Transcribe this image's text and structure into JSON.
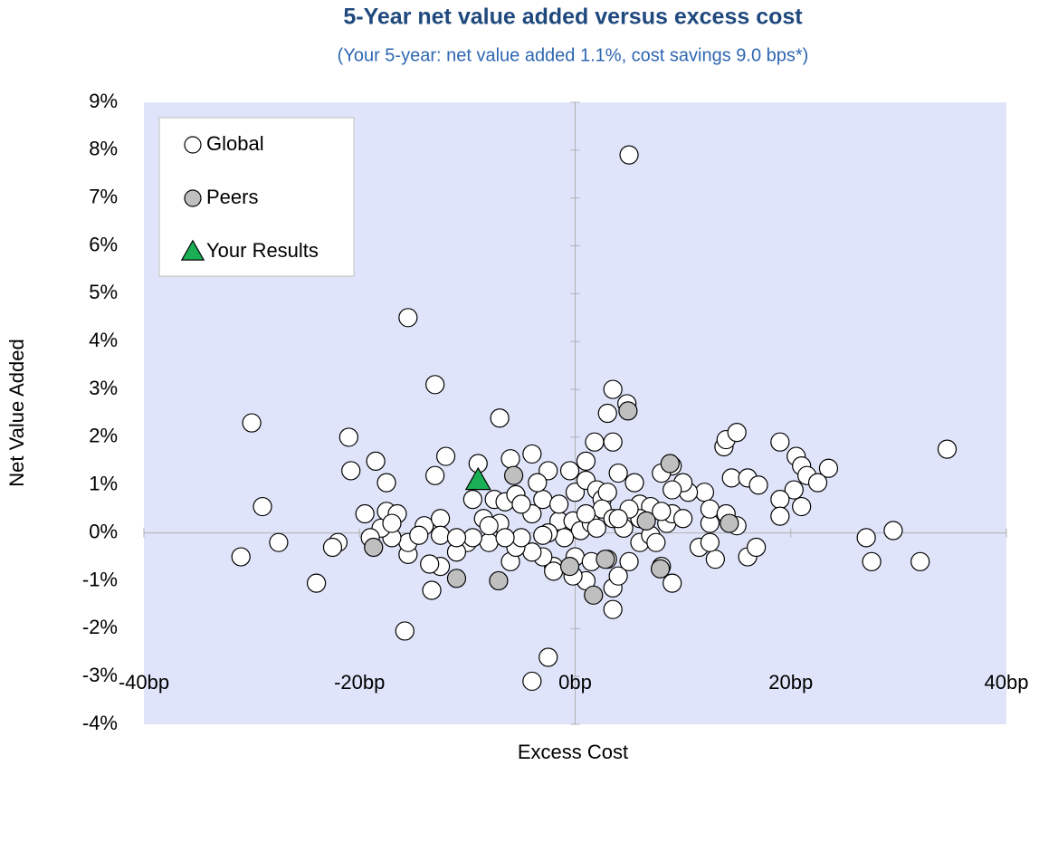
{
  "chart_data": {
    "type": "scatter",
    "title": "5-Year net value added versus excess cost",
    "subtitle": "(Your 5-year: net value added 1.1%, cost savings 9.0 bps*)",
    "x_label": "Excess Cost",
    "y_label": "Net Value Added",
    "xlim": [
      -40,
      40
    ],
    "ylim": [
      -4,
      9
    ],
    "xticks": [
      {
        "value": -40,
        "label": "-40bp"
      },
      {
        "value": -20,
        "label": "-20bp"
      },
      {
        "value": 0,
        "label": "0bp"
      },
      {
        "value": 20,
        "label": "20bp"
      },
      {
        "value": 40,
        "label": "40bp"
      }
    ],
    "yticks": [
      {
        "value": -4,
        "label": "-4%"
      },
      {
        "value": -3,
        "label": "-3%"
      },
      {
        "value": -2,
        "label": "-2%"
      },
      {
        "value": -1,
        "label": "-1%"
      },
      {
        "value": 0,
        "label": "0%"
      },
      {
        "value": 1,
        "label": "1%"
      },
      {
        "value": 2,
        "label": "2%"
      },
      {
        "value": 3,
        "label": "3%"
      },
      {
        "value": 4,
        "label": "4%"
      },
      {
        "value": 5,
        "label": "5%"
      },
      {
        "value": 6,
        "label": "6%"
      },
      {
        "value": 7,
        "label": "7%"
      },
      {
        "value": 8,
        "label": "8%"
      },
      {
        "value": 9,
        "label": "9%"
      }
    ],
    "legend": "upper left",
    "background": "#dfe4fa",
    "series": [
      {
        "name": "Global",
        "color": "#ffffff",
        "marker": "circle",
        "x": [
          5,
          -15.5,
          -13,
          -30,
          -21,
          -29,
          -31,
          -27.5,
          -24,
          -22,
          -15.8,
          -13.3,
          -4,
          -2.5,
          -7,
          3.5,
          4.8,
          3,
          3.5,
          1.8,
          -4,
          -6,
          -9,
          -12,
          -13,
          -18.5,
          -20.8,
          -17.5,
          13.8,
          14,
          15,
          19,
          20.5,
          21,
          21.5,
          23.5,
          22.5,
          20.3,
          19,
          19,
          21,
          14.5,
          16,
          17,
          12,
          10.5,
          9,
          8,
          10,
          9,
          34.5,
          29.5,
          27,
          27.5,
          32,
          16,
          16.8,
          13,
          11.5,
          12.5,
          12.5,
          12.5,
          15,
          14,
          9,
          3.5,
          3.5,
          4,
          3,
          5,
          6,
          7,
          8,
          1,
          -0.2,
          -2,
          -2,
          -3,
          -4,
          -6,
          -5.5,
          -8,
          -10,
          -11,
          -12.5,
          -13.5,
          -15.5,
          -15.5,
          -17,
          -18,
          -19,
          -19.5,
          -17.5,
          -16.5,
          -14,
          -12.5,
          -12.5,
          -9.5,
          -7.5,
          -6.5,
          -5.5,
          -3,
          -2.5,
          -3.5,
          -0.5,
          0,
          1,
          1,
          2,
          2.5,
          3,
          4,
          5.5,
          6,
          7,
          -1.5,
          -0.2,
          0.5,
          1.5,
          2.5,
          3.5,
          4.5,
          -1,
          -2.5,
          -4,
          -5,
          -7,
          -8.5,
          -8,
          -9.5,
          -11,
          -14.5,
          -17,
          -22.5,
          0,
          1.5,
          2,
          6,
          8.5,
          9,
          10,
          5,
          4,
          1,
          -1.5,
          -5,
          -6.5,
          -3,
          7.5,
          8
        ],
        "values": [
          7.9,
          4.5,
          3.1,
          2.3,
          2.0,
          0.55,
          -0.5,
          -0.2,
          -1.05,
          -0.2,
          -2.05,
          -1.2,
          -3.1,
          -2.6,
          2.4,
          3.0,
          2.7,
          2.5,
          1.9,
          1.9,
          1.65,
          1.55,
          1.45,
          1.6,
          1.2,
          1.5,
          1.3,
          1.05,
          1.8,
          1.95,
          2.1,
          1.9,
          1.6,
          1.4,
          1.2,
          1.35,
          1.05,
          0.9,
          0.7,
          0.35,
          0.55,
          1.15,
          1.15,
          1.0,
          0.85,
          0.85,
          1.4,
          1.25,
          1.05,
          0.9,
          1.75,
          0.05,
          -0.1,
          -0.6,
          -0.6,
          -0.5,
          -0.3,
          -0.55,
          -0.3,
          -0.2,
          0.2,
          0.5,
          0.15,
          0.4,
          -1.05,
          -1.6,
          -1.15,
          -0.9,
          -0.55,
          -0.6,
          -0.2,
          -0.05,
          -0.7,
          -1.0,
          -0.9,
          -0.7,
          -0.8,
          -0.5,
          -0.4,
          -0.6,
          -0.3,
          -0.2,
          -0.2,
          -0.4,
          -0.7,
          -0.65,
          -0.45,
          -0.2,
          -0.1,
          0.1,
          -0.1,
          0.4,
          0.45,
          0.4,
          0.15,
          0.3,
          -0.05,
          0.7,
          0.7,
          0.65,
          0.8,
          0.7,
          1.3,
          1.05,
          1.3,
          0.85,
          1.1,
          1.5,
          0.9,
          0.7,
          0.85,
          1.25,
          1.05,
          0.6,
          0.55,
          0.25,
          0.25,
          0.05,
          0.2,
          0.5,
          0.3,
          0.1,
          -0.1,
          0,
          0.4,
          0.6,
          0.2,
          0.3,
          0.15,
          -0.1,
          -0.1,
          -0.05,
          0.2,
          -0.3,
          -0.5,
          -0.6,
          0.1,
          0.3,
          0.2,
          0.4,
          0.3,
          0.5,
          0.3,
          0.4,
          0.6,
          -0.1,
          -0.1,
          -0.05,
          -0.2,
          0.45
        ]
      },
      {
        "name": "Peers",
        "color": "#bfbfbf",
        "marker": "circle",
        "x": [
          -5.7,
          4.9,
          8.8,
          6.6,
          14.3,
          -18.7,
          -11,
          -7.1,
          -0.5,
          2.8,
          1.7,
          7.9
        ],
        "values": [
          1.2,
          2.55,
          1.45,
          0.25,
          0.2,
          -0.3,
          -0.95,
          -1.0,
          -0.7,
          -0.55,
          -1.3,
          -0.75
        ]
      },
      {
        "name": "Your Results",
        "color": "#1aaf54",
        "marker": "triangle",
        "x": [
          -9
        ],
        "values": [
          1.1
        ]
      }
    ]
  }
}
